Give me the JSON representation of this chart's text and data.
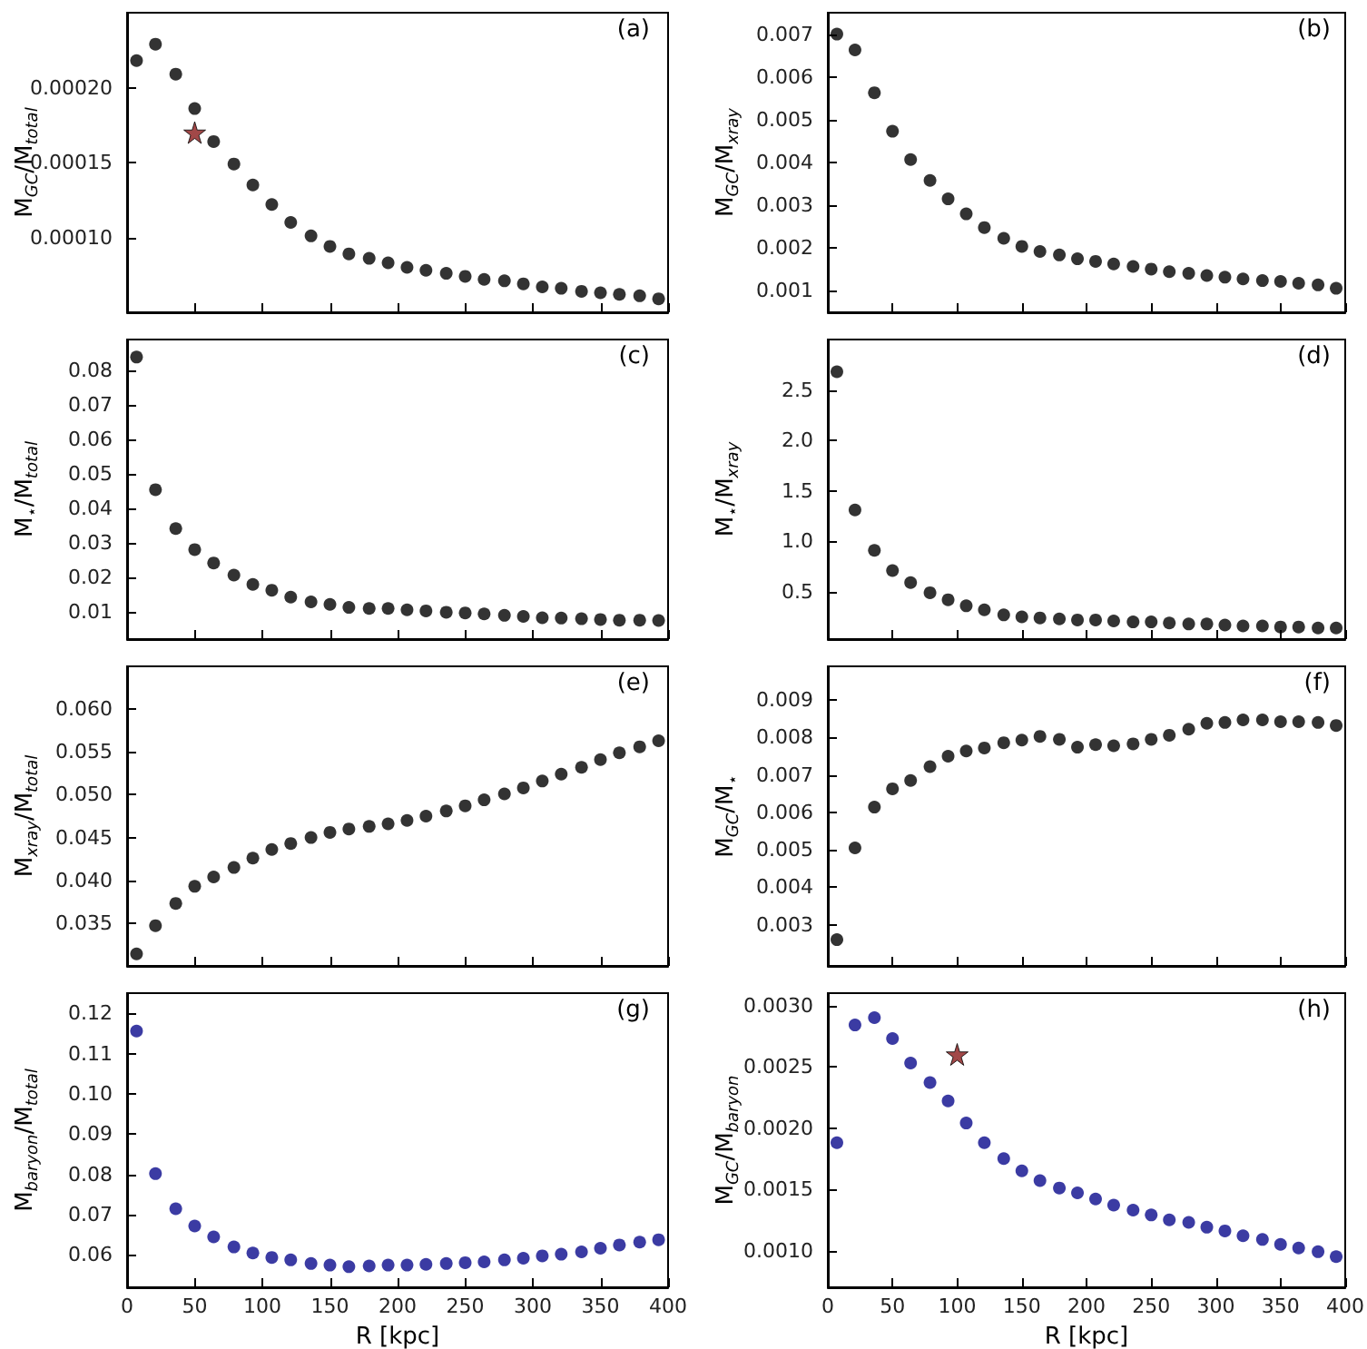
{
  "chart_data": [
    {
      "type": "scatter",
      "ylabel": "M$_{GC}$/M$_{total}$",
      "annotations": [
        "(a)"
      ],
      "marker": "circle",
      "tick_labels": "y",
      "x": [
        7,
        21,
        36,
        50,
        64,
        79,
        93,
        107,
        121,
        136,
        150,
        164,
        179,
        193,
        207,
        221,
        236,
        250,
        264,
        279,
        293,
        307,
        321,
        336,
        350,
        364,
        379,
        393
      ],
      "xlim": [
        0,
        400
      ],
      "xticks": [
        0,
        50,
        100,
        150,
        200,
        250,
        300,
        350,
        400
      ],
      "ylim": [
        5e-05,
        0.00025
      ],
      "yticks": [
        {
          "value": 0.0001,
          "label": "0.00010"
        },
        {
          "value": 0.00015,
          "label": "0.00015"
        },
        {
          "value": 0.0002,
          "label": "0.00020"
        }
      ],
      "series": [
        {
          "color": "#000000",
          "values": [
            0.000218,
            0.000229,
            0.000209,
            0.000186,
            0.000164,
            0.000149,
            0.000135,
            0.000122,
            0.00011,
            0.000101,
            9.4e-05,
            8.9e-05,
            8.6e-05,
            8.3e-05,
            8e-05,
            7.8e-05,
            7.6e-05,
            7.4e-05,
            7.2e-05,
            7.1e-05,
            6.9e-05,
            6.7e-05,
            6.6e-05,
            6.4e-05,
            6.3e-05,
            6.2e-05,
            6.1e-05,
            5.9e-05
          ]
        },
        {
          "color": "#8b1a1a",
          "marker": "star",
          "x": [
            50
          ],
          "values": [
            0.00017
          ]
        }
      ]
    },
    {
      "type": "scatter",
      "ylabel": "M$_{GC}$/M$_{xray}$",
      "annotations": [
        "(b)"
      ],
      "marker": "circle",
      "tick_labels": "y",
      "x": [
        7,
        21,
        36,
        50,
        64,
        79,
        93,
        107,
        121,
        136,
        150,
        164,
        179,
        193,
        207,
        221,
        236,
        250,
        264,
        279,
        293,
        307,
        321,
        336,
        350,
        364,
        379,
        393
      ],
      "xlim": [
        0,
        400
      ],
      "xticks": [
        0,
        50,
        100,
        150,
        200,
        250,
        300,
        350,
        400
      ],
      "ylim": [
        0.0005,
        0.0075
      ],
      "yticks": [
        0.001,
        0.002,
        0.003,
        0.004,
        0.005,
        0.006,
        0.007
      ],
      "series": [
        {
          "color": "#000000",
          "values": [
            0.007,
            0.00663,
            0.00563,
            0.00473,
            0.00407,
            0.00358,
            0.00315,
            0.0028,
            0.00248,
            0.00223,
            0.00204,
            0.00192,
            0.00184,
            0.00175,
            0.00169,
            0.00163,
            0.00157,
            0.00151,
            0.00145,
            0.00141,
            0.00136,
            0.00132,
            0.00128,
            0.00124,
            0.00122,
            0.00118,
            0.00114,
            0.00106
          ]
        }
      ]
    },
    {
      "type": "scatter",
      "ylabel": "M$_{⋆}$/M$_{total}$",
      "annotations": [
        "(c)"
      ],
      "marker": "circle",
      "tick_labels": "y",
      "x": [
        7,
        21,
        36,
        50,
        64,
        79,
        93,
        107,
        121,
        136,
        150,
        164,
        179,
        193,
        207,
        221,
        236,
        250,
        264,
        279,
        293,
        307,
        321,
        336,
        350,
        364,
        379,
        393
      ],
      "xlim": [
        0,
        400
      ],
      "xticks": [
        0,
        50,
        100,
        150,
        200,
        250,
        300,
        350,
        400
      ],
      "ylim": [
        0.002,
        0.089
      ],
      "yticks": [
        0.01,
        0.02,
        0.03,
        0.04,
        0.05,
        0.06,
        0.07,
        0.08
      ],
      "series": [
        {
          "color": "#000000",
          "values": [
            0.0839,
            0.0454,
            0.0341,
            0.028,
            0.0241,
            0.0206,
            0.0179,
            0.0162,
            0.0142,
            0.0128,
            0.0121,
            0.0112,
            0.0109,
            0.0109,
            0.0105,
            0.0102,
            0.0098,
            0.0096,
            0.0093,
            0.0089,
            0.0086,
            0.0082,
            0.0081,
            0.0079,
            0.0077,
            0.0075,
            0.0075,
            0.0074
          ]
        }
      ]
    },
    {
      "type": "scatter",
      "ylabel": "M$_{⋆}$/M$_{xray}$",
      "annotations": [
        "(d)"
      ],
      "marker": "circle",
      "tick_labels": "y",
      "x": [
        7,
        21,
        36,
        50,
        64,
        79,
        93,
        107,
        121,
        136,
        150,
        164,
        179,
        193,
        207,
        221,
        236,
        250,
        264,
        279,
        293,
        307,
        321,
        336,
        350,
        364,
        379,
        393
      ],
      "xlim": [
        0,
        400
      ],
      "xticks": [
        0,
        50,
        100,
        150,
        200,
        250,
        300,
        350,
        400
      ],
      "ylim": [
        0.03,
        3.0
      ],
      "yticks": [
        0.5,
        {
          "value": 1,
          "label": "1.0"
        },
        1.5,
        {
          "value": 2,
          "label": "2.0"
        },
        2.5
      ],
      "series": [
        {
          "color": "#000000",
          "values": [
            2.68,
            1.31,
            0.91,
            0.71,
            0.59,
            0.49,
            0.42,
            0.36,
            0.32,
            0.27,
            0.25,
            0.24,
            0.23,
            0.22,
            0.22,
            0.21,
            0.2,
            0.2,
            0.19,
            0.18,
            0.18,
            0.17,
            0.16,
            0.16,
            0.15,
            0.15,
            0.14,
            0.14
          ]
        }
      ]
    },
    {
      "type": "scatter",
      "ylabel": "M$_{xray}$/M$_{total}$",
      "annotations": [
        "(e)"
      ],
      "marker": "circle",
      "tick_labels": "y",
      "x": [
        7,
        21,
        36,
        50,
        64,
        79,
        93,
        107,
        121,
        136,
        150,
        164,
        179,
        193,
        207,
        221,
        236,
        250,
        264,
        279,
        293,
        307,
        321,
        336,
        350,
        364,
        379,
        393
      ],
      "xlim": [
        0,
        400
      ],
      "xticks": [
        0,
        50,
        100,
        150,
        200,
        250,
        300,
        350,
        400
      ],
      "ylim": [
        0.03,
        0.065
      ],
      "yticks": [
        0.035,
        {
          "value": 0.04,
          "label": "0.040"
        },
        0.045,
        {
          "value": 0.05,
          "label": "0.050"
        },
        0.055,
        {
          "value": 0.06,
          "label": "0.060"
        }
      ],
      "series": [
        {
          "color": "#000000",
          "values": [
            0.0314,
            0.0347,
            0.0373,
            0.0393,
            0.0404,
            0.0415,
            0.0426,
            0.0436,
            0.0443,
            0.045,
            0.0456,
            0.046,
            0.0463,
            0.0466,
            0.047,
            0.0475,
            0.0481,
            0.0487,
            0.0494,
            0.0501,
            0.0508,
            0.0516,
            0.0524,
            0.0532,
            0.0541,
            0.0549,
            0.0556,
            0.0563
          ]
        }
      ]
    },
    {
      "type": "scatter",
      "ylabel": "M$_{GC}$/M$_{⋆}$",
      "annotations": [
        "(f)"
      ],
      "marker": "circle",
      "tick_labels": "y",
      "x": [
        7,
        21,
        36,
        50,
        64,
        79,
        93,
        107,
        121,
        136,
        150,
        164,
        179,
        193,
        207,
        221,
        236,
        250,
        264,
        279,
        293,
        307,
        321,
        336,
        350,
        364,
        379,
        393
      ],
      "xlim": [
        0,
        400
      ],
      "xticks": [
        0,
        50,
        100,
        150,
        200,
        250,
        300,
        350,
        400
      ],
      "ylim": [
        0.0019,
        0.0099
      ],
      "yticks": [
        0.003,
        0.004,
        0.005,
        0.006,
        0.007,
        0.008,
        0.009
      ],
      "series": [
        {
          "color": "#000000",
          "values": [
            0.0026,
            0.00505,
            0.00614,
            0.00663,
            0.00685,
            0.00722,
            0.0075,
            0.00764,
            0.00772,
            0.00786,
            0.00793,
            0.00803,
            0.00795,
            0.00774,
            0.00781,
            0.00778,
            0.00783,
            0.00795,
            0.00806,
            0.00822,
            0.00838,
            0.0084,
            0.00847,
            0.00847,
            0.00842,
            0.00842,
            0.0084,
            0.00832
          ]
        }
      ]
    },
    {
      "type": "scatter",
      "xlabel": "R [kpc]",
      "ylabel": "M$_{baryon}$/M$_{total}$",
      "annotations": [
        "(g)"
      ],
      "marker": "circle",
      "x": [
        7,
        21,
        36,
        50,
        64,
        79,
        93,
        107,
        121,
        136,
        150,
        164,
        179,
        193,
        207,
        221,
        236,
        250,
        264,
        279,
        293,
        307,
        321,
        336,
        350,
        364,
        379,
        393
      ],
      "xlim": [
        0,
        400
      ],
      "xticks": [
        0,
        50,
        100,
        150,
        200,
        250,
        300,
        350,
        400
      ],
      "ylim": [
        0.052,
        0.125
      ],
      "yticks": [
        0.06,
        0.07,
        0.08,
        0.09,
        {
          "value": 0.1,
          "label": "0.10"
        },
        0.11,
        0.12
      ],
      "series": [
        {
          "color": "#0a0a8c",
          "values": [
            0.1156,
            0.0802,
            0.0715,
            0.0672,
            0.0645,
            0.062,
            0.0605,
            0.0594,
            0.0588,
            0.0579,
            0.0575,
            0.0571,
            0.0573,
            0.0575,
            0.0575,
            0.0577,
            0.0579,
            0.0581,
            0.0583,
            0.0588,
            0.0592,
            0.0598,
            0.0602,
            0.0608,
            0.0617,
            0.0625,
            0.0632,
            0.0638
          ]
        }
      ]
    },
    {
      "type": "scatter",
      "xlabel": "R [kpc]",
      "ylabel": "M$_{GC}$/M$_{baryon}$",
      "annotations": [
        "(h)"
      ],
      "marker": "circle",
      "x": [
        7,
        21,
        36,
        50,
        64,
        79,
        93,
        107,
        121,
        136,
        150,
        164,
        179,
        193,
        207,
        221,
        236,
        250,
        264,
        279,
        293,
        307,
        321,
        336,
        350,
        364,
        379,
        393
      ],
      "xlim": [
        0,
        400
      ],
      "xticks": [
        0,
        50,
        100,
        150,
        200,
        250,
        300,
        350,
        400
      ],
      "ylim": [
        0.0007,
        0.0031
      ],
      "yticks": [
        {
          "value": 0.001,
          "label": "0.0010"
        },
        0.0015,
        {
          "value": 0.002,
          "label": "0.0020"
        },
        0.0025,
        {
          "value": 0.003,
          "label": "0.0030"
        }
      ],
      "series": [
        {
          "color": "#0a0a8c",
          "values": [
            0.00188,
            0.00284,
            0.0029,
            0.00273,
            0.00253,
            0.00237,
            0.00222,
            0.00204,
            0.00188,
            0.00175,
            0.00165,
            0.00157,
            0.00151,
            0.00147,
            0.00142,
            0.00137,
            0.00133,
            0.00129,
            0.00125,
            0.00123,
            0.00119,
            0.00116,
            0.00112,
            0.00109,
            0.00105,
            0.00102,
            0.00099,
            0.00095
          ]
        },
        {
          "color": "#8b1a1a",
          "marker": "star",
          "x": [
            100
          ],
          "values": [
            0.0026
          ]
        }
      ]
    }
  ]
}
